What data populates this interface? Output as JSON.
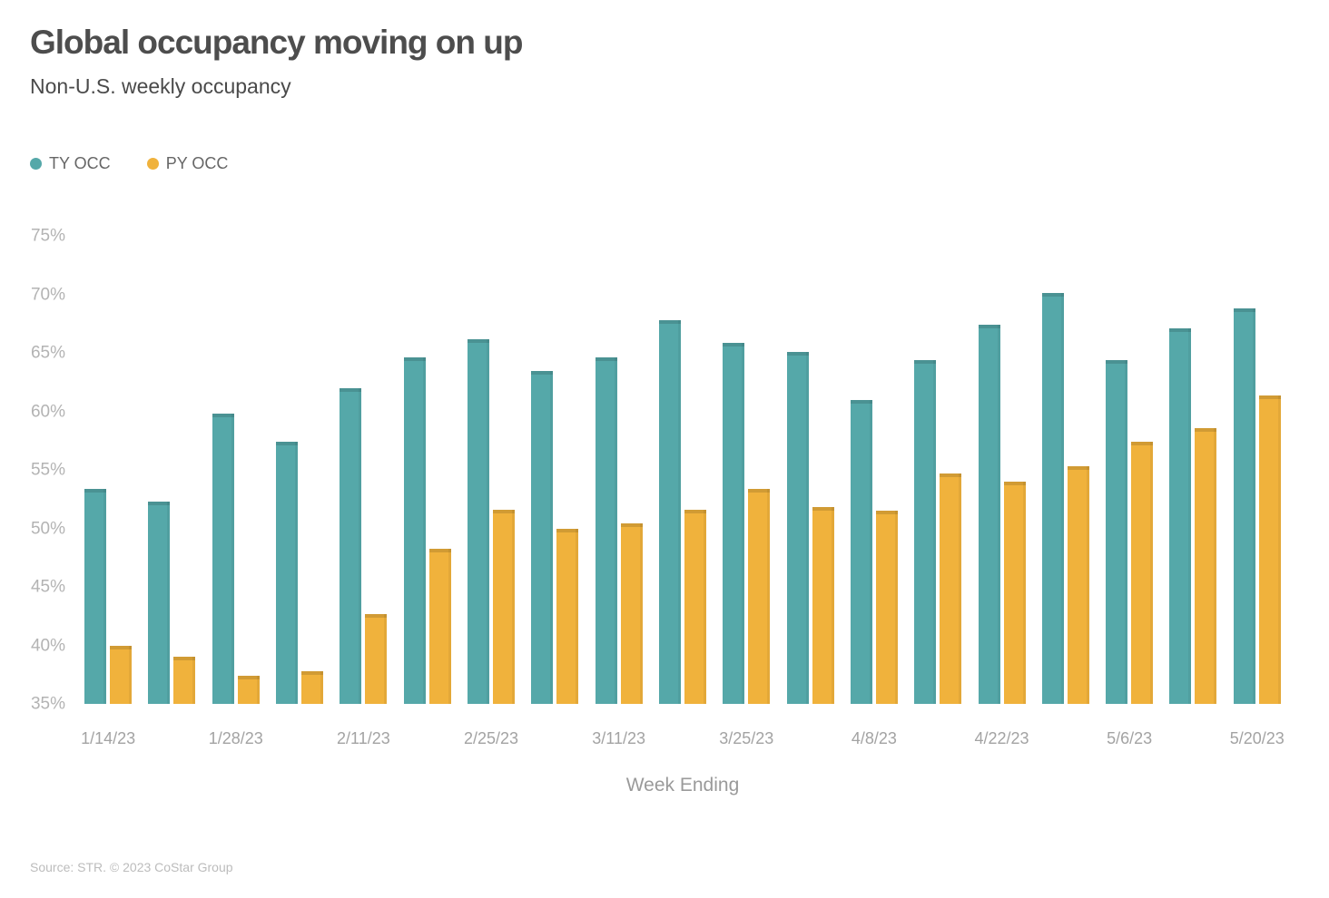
{
  "header": {
    "title": "Global occupancy moving on up",
    "subtitle": "Non-U.S. weekly occupancy"
  },
  "legend": {
    "items": [
      {
        "label": "TY OCC",
        "color": "#55a8a9"
      },
      {
        "label": "PY OCC",
        "color": "#f0b23c"
      }
    ]
  },
  "chart_data": {
    "type": "bar",
    "title": "Global occupancy moving on up",
    "subtitle": "Non-U.S. weekly occupancy",
    "xlabel": "Week Ending",
    "ylabel": "",
    "categories": [
      "1/14/23",
      "",
      "1/28/23",
      "",
      "2/11/23",
      "",
      "2/25/23",
      "",
      "3/11/23",
      "",
      "3/25/23",
      "",
      "4/8/23",
      "",
      "4/22/23",
      "",
      "5/6/23",
      "",
      "5/20/23"
    ],
    "x_tick_labels_visible": [
      "1/14/23",
      "1/28/23",
      "2/11/23",
      "2/25/23",
      "3/11/23",
      "3/25/23",
      "4/8/23",
      "4/22/23",
      "5/6/23",
      "5/20/23"
    ],
    "series": [
      {
        "name": "TY OCC",
        "color": "#55a8a9",
        "values": [
          53.4,
          52.3,
          59.8,
          57.4,
          62.0,
          64.6,
          66.2,
          63.5,
          64.6,
          67.8,
          65.9,
          65.1,
          61.0,
          64.4,
          67.4,
          70.1,
          64.4,
          67.1,
          68.8
        ]
      },
      {
        "name": "PY OCC",
        "color": "#f0b23c",
        "values": [
          40.0,
          39.0,
          37.4,
          37.8,
          42.7,
          48.3,
          51.6,
          50.0,
          50.4,
          51.6,
          53.4,
          51.8,
          51.5,
          54.7,
          54.0,
          55.3,
          57.4,
          58.6,
          61.4
        ]
      }
    ],
    "yticks": [
      35,
      40,
      45,
      50,
      55,
      60,
      65,
      70,
      75
    ],
    "ytick_suffix": "%",
    "ylim": [
      35,
      77.5
    ],
    "grid": false,
    "legend_position": "top-left"
  },
  "source": "Source: STR. © 2023 CoStar Group"
}
